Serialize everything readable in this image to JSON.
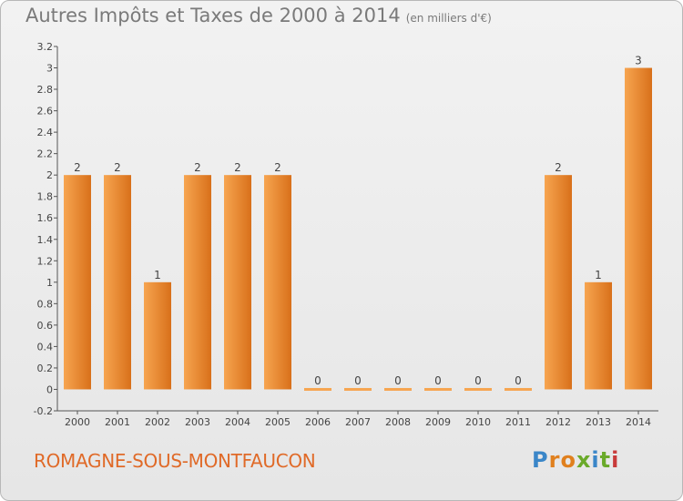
{
  "title": "Autres Impôts et Taxes de 2000 à 2014",
  "unit": "(en milliers d'€)",
  "commune": "ROMAGNE-SOUS-MONTFAUCON",
  "logo": {
    "letters": [
      "P",
      "r",
      "o",
      "x",
      "i",
      "t",
      "i"
    ],
    "colors": [
      "#3a86c8",
      "#e0801e",
      "#e0801e",
      "#6aaa2a",
      "#3a86c8",
      "#6aaa2a",
      "#c83a3a"
    ]
  },
  "colors": {
    "bar": "#f08a2c",
    "bar_light": "#f7a550",
    "bar_dark": "#d8701a",
    "axis": "#555555",
    "grid_text": "#444444",
    "commune": "#e06a28"
  },
  "chart_data": {
    "type": "bar",
    "categories": [
      "2000",
      "2001",
      "2002",
      "2003",
      "2004",
      "2005",
      "2006",
      "2007",
      "2008",
      "2009",
      "2010",
      "2011",
      "2012",
      "2013",
      "2014"
    ],
    "values": [
      2,
      2,
      1,
      2,
      2,
      2,
      0,
      0,
      0,
      0,
      0,
      0,
      2,
      1,
      3
    ],
    "data_labels": [
      "2",
      "2",
      "1",
      "2",
      "2",
      "2",
      "0",
      "0",
      "0",
      "0",
      "0",
      "0",
      "2",
      "1",
      "3"
    ],
    "yticks": [
      -0.2,
      0,
      0.2,
      0.4,
      0.6,
      0.8,
      1,
      1.2,
      1.4,
      1.6,
      1.8,
      2,
      2.2,
      2.4,
      2.6,
      2.8,
      3,
      3.2
    ],
    "ytick_labels": [
      "-0.2",
      "0",
      "0.2",
      "0.4",
      "0.6",
      "0.8",
      "1",
      "1.2",
      "1.4",
      "1.6",
      "1.8",
      "2",
      "2.2",
      "2.4",
      "2.6",
      "2.8",
      "3",
      "3.2"
    ],
    "ylim": [
      -0.2,
      3.2
    ],
    "grid": false,
    "title": "Autres Impôts et Taxes de 2000 à 2014",
    "xlabel": "",
    "ylabel": ""
  }
}
